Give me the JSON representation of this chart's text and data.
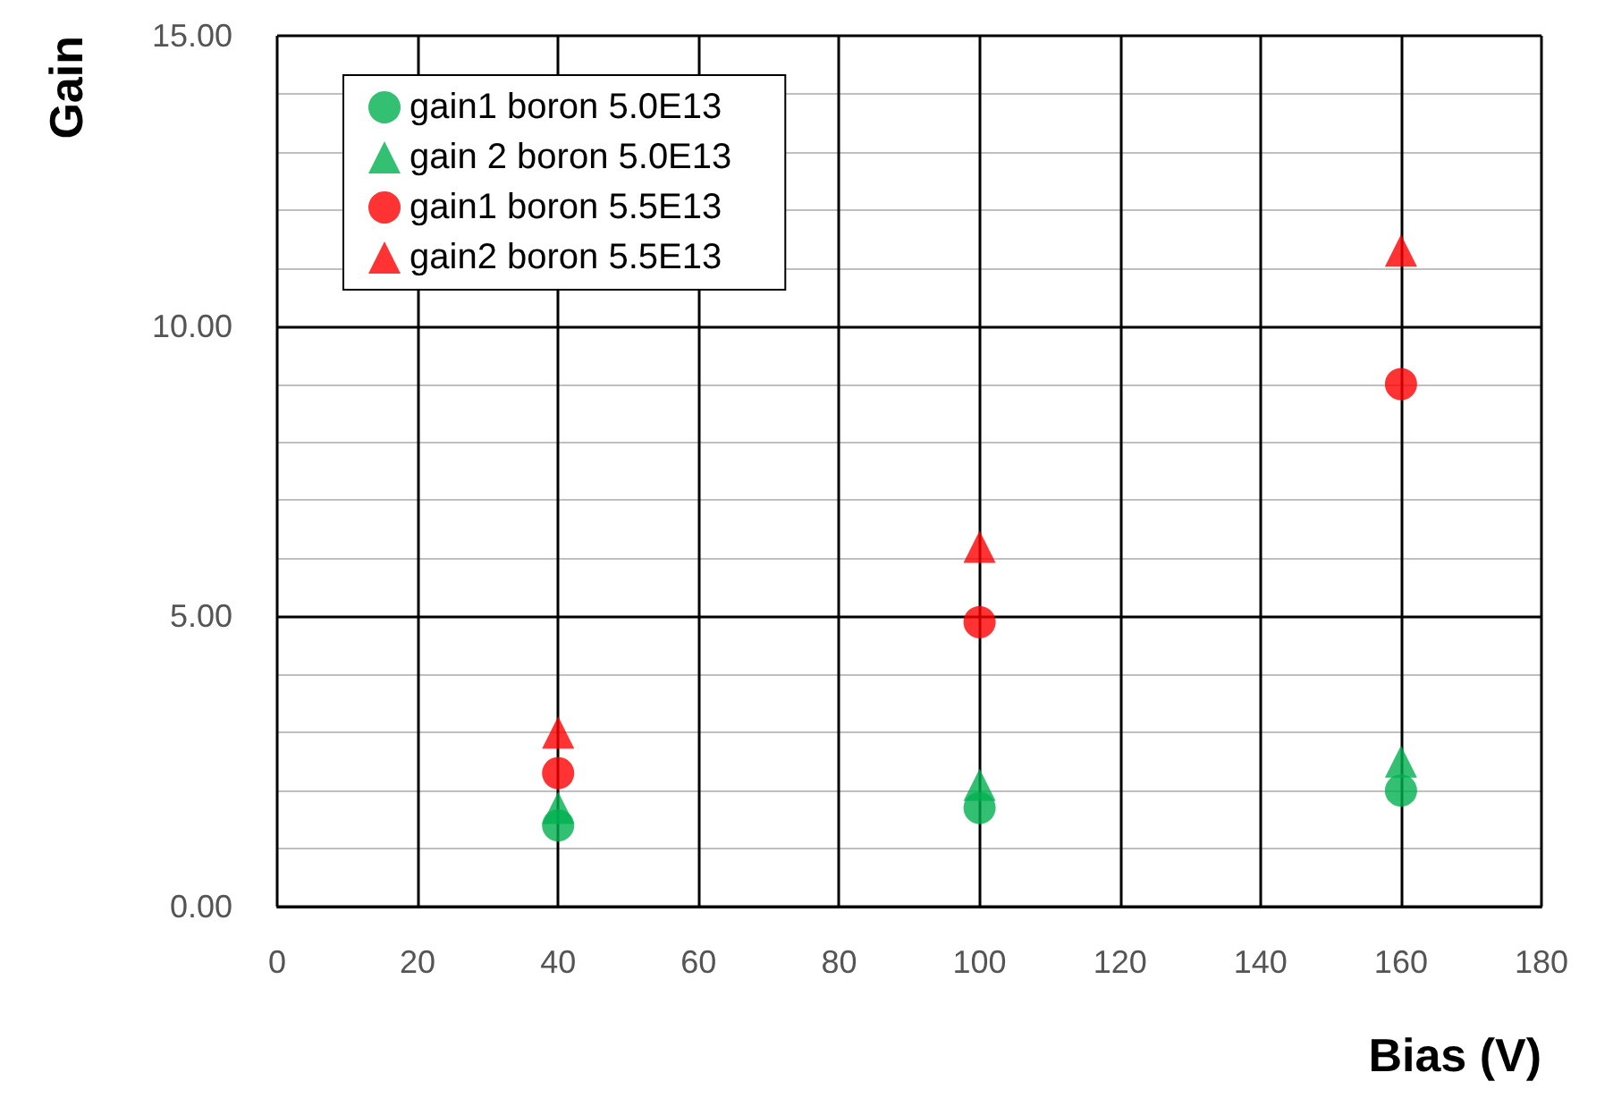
{
  "chart_data": {
    "type": "scatter",
    "xlabel": "Bias (V)",
    "ylabel": "Gain",
    "x": [
      40,
      100,
      160
    ],
    "series": [
      {
        "name": "gain1 boron 5.0E13",
        "color": "#00b050",
        "marker": "circle",
        "values": [
          1.4,
          1.7,
          2.0
        ]
      },
      {
        "name": "gain 2 boron 5.0E13",
        "color": "#00b050",
        "marker": "triangle",
        "values": [
          1.7,
          2.1,
          2.5
        ]
      },
      {
        "name": "gain1 boron 5.5E13",
        "color": "#ff0000",
        "marker": "circle",
        "values": [
          2.3,
          4.9,
          9.0
        ]
      },
      {
        "name": "gain2 boron 5.5E13",
        "color": "#ff0000",
        "marker": "triangle",
        "values": [
          3.0,
          6.2,
          11.3
        ]
      }
    ],
    "xlim": [
      0,
      180
    ],
    "xticks": [
      0,
      20,
      40,
      60,
      80,
      100,
      120,
      140,
      160,
      180
    ],
    "ylim": [
      0,
      15
    ],
    "yticks": [
      {
        "value": 0,
        "label": "0.00"
      },
      {
        "value": 5,
        "label": "5.00"
      },
      {
        "value": 10,
        "label": "10.00"
      },
      {
        "value": 15,
        "label": "15.00"
      }
    ],
    "grid": true,
    "legend": "top left"
  }
}
